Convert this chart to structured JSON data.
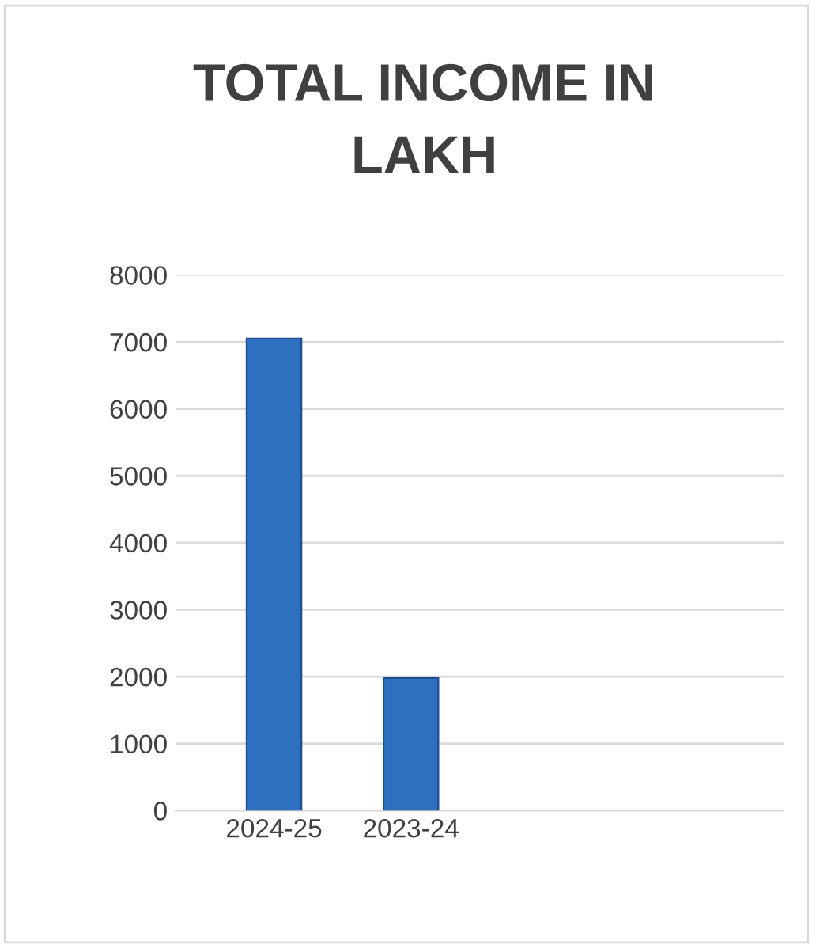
{
  "chart_data": {
    "type": "bar",
    "title": "TOTAL INCOME IN\nLAKH",
    "categories": [
      "2024-25",
      "2023-24",
      null,
      null
    ],
    "values": [
      7050,
      1980,
      null,
      null
    ],
    "color": "#2f6fbf",
    "ylim": [
      0,
      8000
    ],
    "yticks": [
      0,
      1000,
      2000,
      3000,
      4000,
      5000,
      6000,
      7000,
      8000
    ],
    "grid": "y"
  }
}
